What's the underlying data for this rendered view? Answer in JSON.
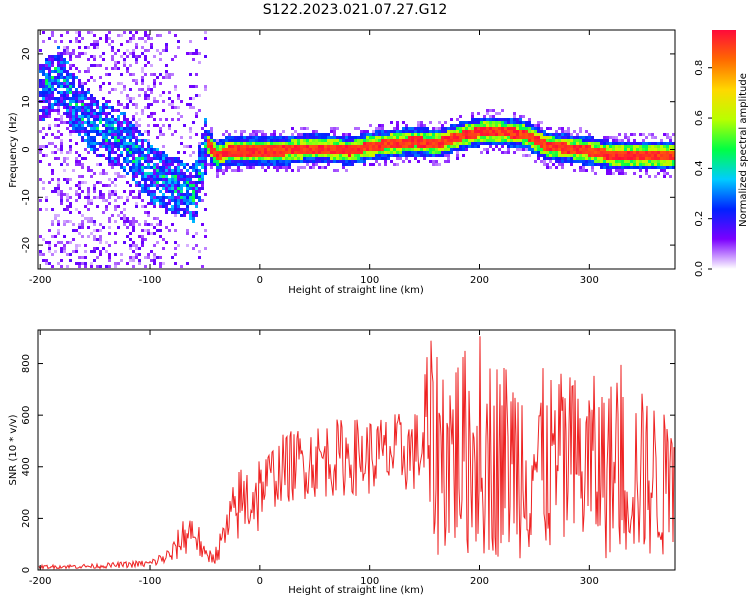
{
  "figure_title": "S122.2023.021.07.27.G12",
  "colors": {
    "snr_line": "#ee2222",
    "axis": "#000000",
    "background": "#ffffff"
  },
  "colormap": [
    "#ffffff",
    "#7b00ff",
    "#0022ff",
    "#00ccff",
    "#00ff44",
    "#b8ff00",
    "#ffd800",
    "#ff6a00",
    "#ff0a3a"
  ],
  "chart_data": [
    {
      "type": "heatmap",
      "xlabel": "Height of straight line (km)",
      "ylabel": "Frequency (Hz)",
      "xlim": [
        -202,
        378
      ],
      "ylim": [
        -25,
        25
      ],
      "xticks": [
        -200,
        -100,
        0,
        100,
        200,
        300
      ],
      "yticks": [
        -20,
        -10,
        0,
        10,
        20
      ],
      "colorbar": {
        "label": "Normalized spectral amplitude",
        "range": [
          0,
          0.95
        ],
        "ticks": [
          0.0,
          0.2,
          0.4,
          0.6,
          0.8
        ]
      },
      "grid": false,
      "ridge": {
        "height_km": [
          -200,
          -185,
          -170,
          -155,
          -140,
          -125,
          -110,
          -100,
          -90,
          -80,
          -70,
          -60,
          -50,
          -40,
          -30,
          -20,
          0,
          20,
          40,
          60,
          80,
          100,
          120,
          140,
          160,
          180,
          200,
          220,
          240,
          260,
          280,
          300,
          320,
          340,
          360,
          375
        ],
        "frequency_hz": [
          12,
          16,
          10,
          6,
          4,
          2,
          -2,
          -5,
          -6,
          -7,
          -8,
          -9,
          2,
          -1,
          0,
          0,
          0,
          0,
          0.5,
          0.5,
          0,
          1,
          1.5,
          2,
          1.5,
          3,
          4,
          4,
          3.5,
          1,
          0.5,
          0,
          -1,
          -1,
          -1,
          -1
        ]
      }
    },
    {
      "type": "line",
      "xlabel": "Height of straight line (km)",
      "ylabel": "SNR (10 * v/v)",
      "xlim": [
        -202,
        378
      ],
      "ylim": [
        0,
        930
      ],
      "xticks": [
        -200,
        -100,
        0,
        100,
        200,
        300
      ],
      "yticks": [
        0,
        200,
        400,
        600,
        800
      ],
      "grid": false,
      "series": [
        {
          "x": [
            -200,
            -150,
            -100,
            -80,
            -70,
            -60,
            -50,
            -40,
            -30,
            -20,
            -10,
            0,
            10,
            20,
            40,
            60,
            80,
            100,
            120,
            140,
            160,
            180,
            200,
            220,
            240,
            260,
            280,
            300,
            320,
            340,
            360,
            375
          ],
          "y": [
            12,
            15,
            25,
            60,
            130,
            160,
            50,
            60,
            150,
            250,
            280,
            310,
            360,
            390,
            420,
            430,
            440,
            440,
            450,
            460,
            470,
            460,
            450,
            440,
            430,
            410,
            400,
            400,
            390,
            380,
            350,
            300
          ]
        }
      ]
    }
  ]
}
